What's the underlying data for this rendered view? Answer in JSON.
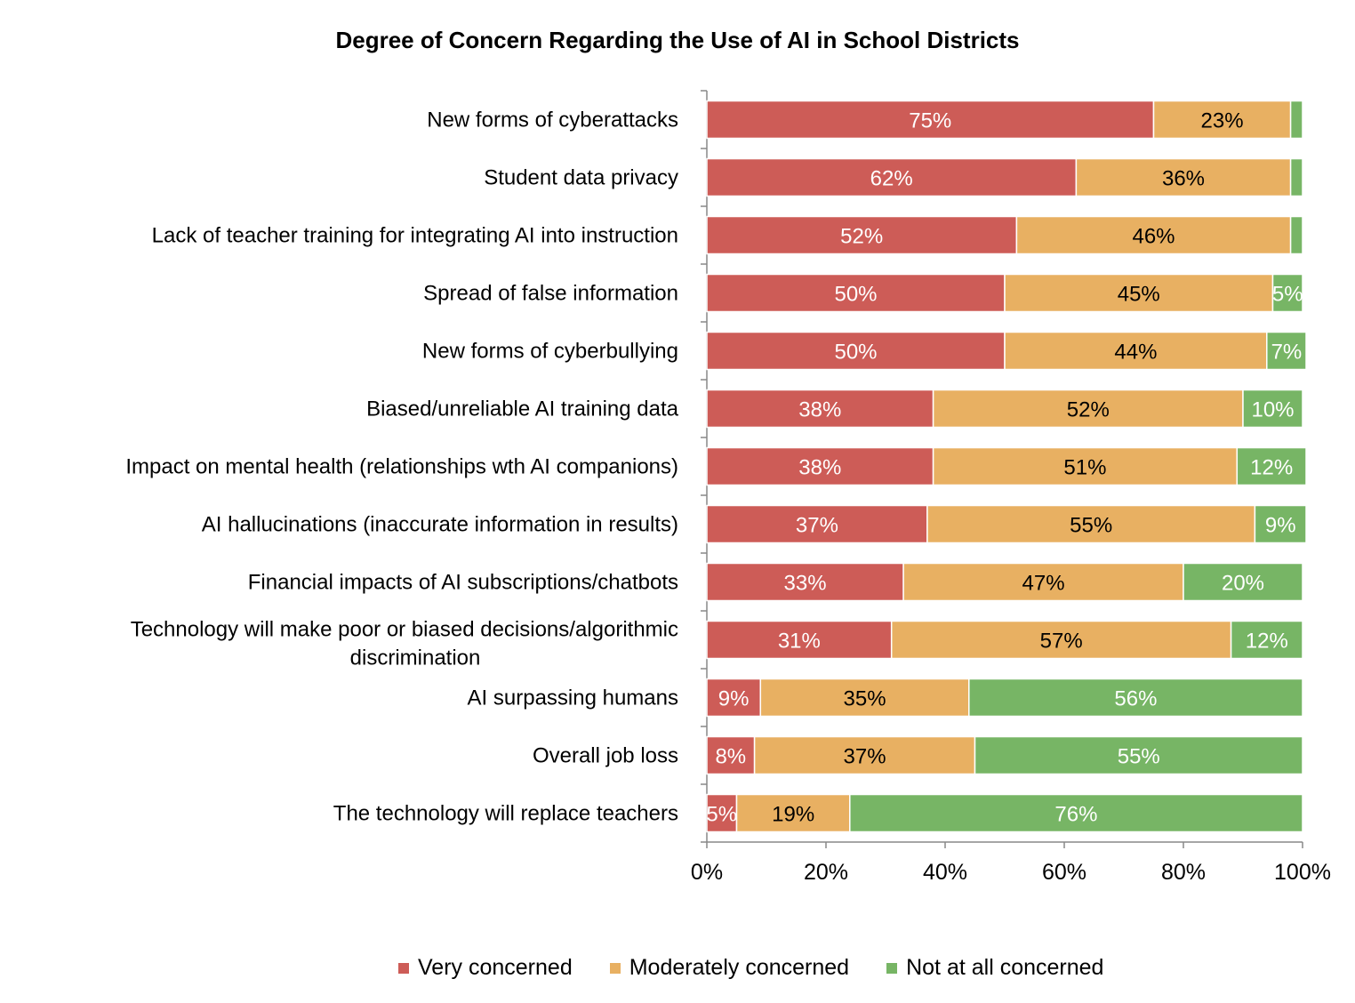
{
  "chart_data": {
    "type": "bar",
    "orientation": "horizontal",
    "stacked": true,
    "title": "Degree of Concern Regarding the Use of AI in School Districts",
    "categories": [
      "New forms of cyberattacks",
      "Student data privacy",
      "Lack of teacher training for integrating AI into instruction",
      "Spread of false information",
      "New forms of cyberbullying",
      "Biased/unreliable AI training data",
      "Impact on mental health (relationships wth AI companions)",
      "AI hallucinations (inaccurate information in results)",
      "Financial impacts of AI subscriptions/chatbots",
      "Technology will make poor or biased decisions/algorithmic discrimination",
      "AI surpassing humans",
      "Overall job loss",
      "The technology will replace teachers"
    ],
    "series": [
      {
        "name": "Very concerned",
        "color": "#cd5c57",
        "values": [
          75,
          62,
          52,
          50,
          50,
          38,
          38,
          37,
          33,
          31,
          9,
          8,
          5
        ],
        "labels": [
          "75%",
          "62%",
          "52%",
          "50%",
          "50%",
          "38%",
          "38%",
          "37%",
          "33%",
          "31%",
          "9%",
          "8%",
          "5%"
        ]
      },
      {
        "name": "Moderately concerned",
        "color": "#e8b062",
        "values": [
          23,
          36,
          46,
          45,
          44,
          52,
          51,
          55,
          47,
          57,
          35,
          37,
          19
        ],
        "labels": [
          "23%",
          "36%",
          "46%",
          "45%",
          "44%",
          "52%",
          "51%",
          "55%",
          "47%",
          "57%",
          "35%",
          "37%",
          "19%"
        ]
      },
      {
        "name": "Not at all concerned",
        "color": "#77b565",
        "values": [
          2,
          2,
          2,
          5,
          7,
          10,
          12,
          9,
          20,
          12,
          56,
          55,
          76
        ],
        "labels": [
          "",
          "",
          "",
          "5%",
          "7%",
          "10%",
          "12%",
          "9%",
          "20%",
          "12%",
          "56%",
          "55%",
          "76%"
        ]
      }
    ],
    "xlim": [
      0,
      100
    ],
    "xticks": [
      "0%",
      "20%",
      "40%",
      "60%",
      "80%",
      "100%"
    ],
    "grid": false,
    "legend_position": "bottom"
  }
}
